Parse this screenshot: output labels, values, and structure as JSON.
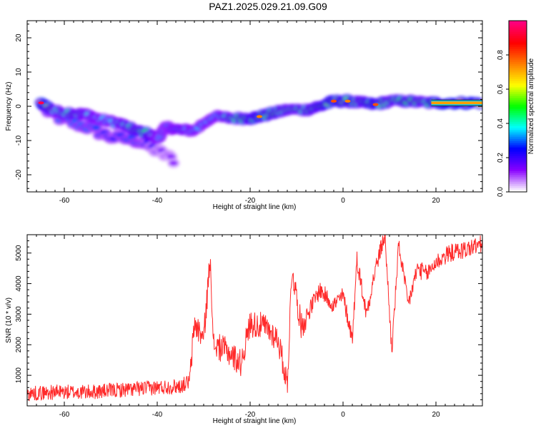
{
  "title": "PAZ1.2025.029.21.09.G09",
  "chart_data": [
    {
      "type": "heatmap",
      "xlabel": "Height of straight line (km)",
      "ylabel": "Frequency (Hz)",
      "xlim": [
        -68,
        30
      ],
      "ylim": [
        -25,
        25
      ],
      "x_ticks": [
        -60,
        -40,
        -20,
        0,
        20
      ],
      "y_ticks": [
        -20,
        -10,
        0,
        10,
        20
      ],
      "colorbar": {
        "label": "Normalized spectral amplitude",
        "range": [
          0.0,
          1.0
        ],
        "ticks": [
          "0.0",
          "0.2",
          "0.4",
          "0.6",
          "0.8"
        ],
        "tick_values": [
          0.0,
          0.2,
          0.4,
          0.6,
          0.8
        ],
        "colors": [
          "#ffffff",
          "#8800ff",
          "#0000ff",
          "#00ffff",
          "#00ff00",
          "#ffff00",
          "#ff8000",
          "#ff0000",
          "#ff0080"
        ]
      },
      "ridge": [
        {
          "x": -65,
          "y": 1,
          "a": 0.75
        },
        {
          "x": -62,
          "y": -1.5,
          "a": 0.4
        },
        {
          "x": -58,
          "y": -2,
          "a": 0.45
        },
        {
          "x": -55,
          "y": -2.5,
          "a": 0.4
        },
        {
          "x": -52,
          "y": -4,
          "a": 0.35
        },
        {
          "x": -48,
          "y": -5,
          "a": 0.4
        },
        {
          "x": -45,
          "y": -7,
          "a": 0.45
        },
        {
          "x": -42,
          "y": -8,
          "a": 0.5
        },
        {
          "x": -40,
          "y": -9.5,
          "a": 0.35
        },
        {
          "x": -38,
          "y": -6,
          "a": 0.3
        },
        {
          "x": -35,
          "y": -7,
          "a": 0.4
        },
        {
          "x": -32,
          "y": -7,
          "a": 0.35
        },
        {
          "x": -28,
          "y": -3,
          "a": 0.35
        },
        {
          "x": -24,
          "y": -3.5,
          "a": 0.45
        },
        {
          "x": -20,
          "y": -3.5,
          "a": 0.5
        },
        {
          "x": -18,
          "y": -3,
          "a": 0.55
        },
        {
          "x": -15,
          "y": -2,
          "a": 0.5
        },
        {
          "x": -12,
          "y": -1,
          "a": 0.45
        },
        {
          "x": -8,
          "y": -1,
          "a": 0.45
        },
        {
          "x": -5,
          "y": 0,
          "a": 0.5
        },
        {
          "x": -2,
          "y": 1.5,
          "a": 0.6
        },
        {
          "x": 1,
          "y": 1.5,
          "a": 0.55
        },
        {
          "x": 4,
          "y": 1,
          "a": 0.45
        },
        {
          "x": 7,
          "y": 0.5,
          "a": 0.6
        },
        {
          "x": 10,
          "y": 1.5,
          "a": 0.45
        },
        {
          "x": 14,
          "y": 1.5,
          "a": 0.5
        },
        {
          "x": 18,
          "y": 1,
          "a": 0.45
        },
        {
          "x": 22,
          "y": 1,
          "a": 0.7
        },
        {
          "x": 26,
          "y": 1,
          "a": 0.7
        },
        {
          "x": 30,
          "y": 1,
          "a": 0.65
        }
      ],
      "branch": [
        {
          "x": -64,
          "y": -1,
          "a": 0.3
        },
        {
          "x": -60,
          "y": -4,
          "a": 0.3
        },
        {
          "x": -55,
          "y": -6,
          "a": 0.3
        },
        {
          "x": -50,
          "y": -9,
          "a": 0.25
        },
        {
          "x": -44,
          "y": -10,
          "a": 0.3
        },
        {
          "x": -40,
          "y": -13,
          "a": 0.15
        },
        {
          "x": -36,
          "y": -16,
          "a": 0.12
        }
      ]
    },
    {
      "type": "line",
      "xlabel": "Height of straight line (km)",
      "ylabel": "SNR (10 * v/v)",
      "xlim": [
        -68,
        30
      ],
      "ylim": [
        0,
        5600
      ],
      "x_ticks": [
        -60,
        -40,
        -20,
        0,
        20
      ],
      "y_ticks": [
        1000,
        2000,
        3000,
        4000,
        5000
      ],
      "color": "#ff2a2a",
      "keypoints": [
        {
          "x": -68,
          "y": 400
        },
        {
          "x": -62,
          "y": 450
        },
        {
          "x": -55,
          "y": 450
        },
        {
          "x": -50,
          "y": 500
        },
        {
          "x": -45,
          "y": 550
        },
        {
          "x": -40,
          "y": 600
        },
        {
          "x": -35,
          "y": 650
        },
        {
          "x": -33,
          "y": 800
        },
        {
          "x": -32,
          "y": 2700
        },
        {
          "x": -30,
          "y": 2200
        },
        {
          "x": -28.5,
          "y": 5000
        },
        {
          "x": -28,
          "y": 2000
        },
        {
          "x": -25,
          "y": 1800
        },
        {
          "x": -22,
          "y": 1400
        },
        {
          "x": -20,
          "y": 2700
        },
        {
          "x": -17,
          "y": 2600
        },
        {
          "x": -14,
          "y": 2200
        },
        {
          "x": -12,
          "y": 700
        },
        {
          "x": -11,
          "y": 4500
        },
        {
          "x": -9,
          "y": 2600
        },
        {
          "x": -7,
          "y": 3200
        },
        {
          "x": -5,
          "y": 3800
        },
        {
          "x": -2,
          "y": 3300
        },
        {
          "x": 0,
          "y": 3600
        },
        {
          "x": 2,
          "y": 2200
        },
        {
          "x": 3,
          "y": 4800
        },
        {
          "x": 5,
          "y": 3000
        },
        {
          "x": 7,
          "y": 4500
        },
        {
          "x": 9,
          "y": 5600
        },
        {
          "x": 10.5,
          "y": 1800
        },
        {
          "x": 12,
          "y": 5300
        },
        {
          "x": 14,
          "y": 3300
        },
        {
          "x": 16,
          "y": 4500
        },
        {
          "x": 18,
          "y": 4300
        },
        {
          "x": 20,
          "y": 4700
        },
        {
          "x": 23,
          "y": 5000
        },
        {
          "x": 26,
          "y": 5100
        },
        {
          "x": 30,
          "y": 5300
        }
      ],
      "noise": [
        {
          "x0": -68,
          "x1": -33,
          "amp": 250
        },
        {
          "x0": -33,
          "x1": -8,
          "amp": 450
        },
        {
          "x0": -8,
          "x1": 30,
          "amp": 300
        }
      ]
    }
  ]
}
